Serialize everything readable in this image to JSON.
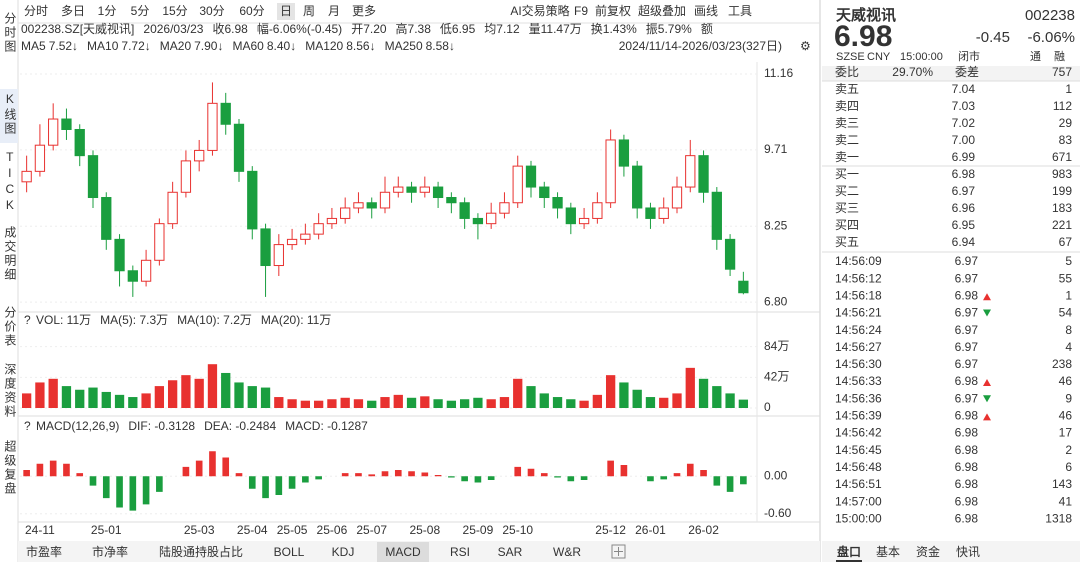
{
  "sidebar": {
    "tabs": [
      "分时图",
      "K线图",
      "TICK",
      "成交明细",
      "分价表",
      "深度资料",
      "超级复盘"
    ],
    "active": 1
  },
  "toolbar": {
    "periods": [
      "分时",
      "多日",
      "1分",
      "5分",
      "15分",
      "30分",
      "60分",
      "日",
      "周",
      "月",
      "更多"
    ],
    "active": 7,
    "tools": [
      "AI交易策略",
      "F9",
      "前复权",
      "超级叠加",
      "画线",
      "工具"
    ]
  },
  "info": [
    {
      "text": "002238.SZ[天威视讯]",
      "color": "#333333"
    },
    {
      "text": "2026/03/23",
      "color": "#333333"
    },
    {
      "text": "收6.98",
      "color": "#1a9e3f"
    },
    {
      "text": "幅-6.06%(-0.45)",
      "color": "#1a9e3f"
    },
    {
      "text": "开7.20",
      "color": "#333333"
    },
    {
      "text": "高7.38",
      "color": "#333333"
    },
    {
      "text": "低6.95",
      "color": "#333333"
    },
    {
      "text": "均7.12",
      "color": "#333333"
    },
    {
      "text": "量11.47万",
      "color": "#333333"
    },
    {
      "text": "换1.43%",
      "color": "#333333"
    },
    {
      "text": "振5.79%",
      "color": "#333333"
    },
    {
      "text": "额",
      "color": "#333333"
    }
  ],
  "ma_legend": [
    {
      "name": "MA5",
      "value": "7.52↓",
      "color": "#e8312f"
    },
    {
      "name": "MA10",
      "value": "7.72↓",
      "color": "#3a6fd8"
    },
    {
      "name": "MA20",
      "value": "7.90↓",
      "color": "#1c3f9e"
    },
    {
      "name": "MA60",
      "value": "8.40↓",
      "color": "#1aa6b7"
    },
    {
      "name": "MA120",
      "value": "8.56↓",
      "color": "#2e9e3a"
    },
    {
      "name": "MA250",
      "value": "8.58↓",
      "color": "#c0359e"
    }
  ],
  "range": "2024/11/14-2026/03/23(327日)",
  "vol_legend": [
    {
      "text": "VOL: 11万",
      "color": "#333333"
    },
    {
      "text": "MA(5): 7.3万",
      "color": "#333333"
    },
    {
      "text": "MA(10): 7.2万",
      "color": "#e8312f"
    },
    {
      "text": "MA(20): 11万",
      "color": "#3a6fd8"
    }
  ],
  "macd_legend": [
    {
      "text": "MACD(12,26,9)",
      "color": "#333333"
    },
    {
      "text": "DIF: -0.3128",
      "color": "#333333"
    },
    {
      "text": "DEA: -0.2484",
      "color": "#e8312f"
    },
    {
      "text": "MACD: -0.1287",
      "color": "#1a9e3f"
    }
  ],
  "chart_data": [
    {
      "type": "candlestick",
      "up_color": "#e8312f",
      "down_color": "#1a9e3f",
      "grid": true,
      "x": [
        null,
        "24-11",
        null,
        null,
        null,
        null,
        "25-01",
        null,
        null,
        null,
        null,
        null,
        null,
        "25-03",
        null,
        null,
        null,
        "25-04",
        null,
        null,
        "25-05",
        null,
        null,
        "25-06",
        null,
        null,
        "25-07",
        null,
        null,
        null,
        "25-08",
        null,
        null,
        null,
        "25-09",
        null,
        null,
        "25-10",
        null,
        null,
        null,
        null,
        null,
        null,
        "25-12",
        null,
        null,
        "26-01",
        null,
        null,
        null,
        "26-02",
        null,
        null,
        null
      ],
      "open": [
        9.1,
        9.3,
        9.8,
        10.3,
        10.1,
        9.6,
        8.8,
        8.0,
        7.4,
        7.2,
        7.6,
        8.3,
        8.9,
        9.5,
        9.7,
        10.6,
        10.2,
        9.3,
        8.2,
        7.5,
        7.9,
        8.0,
        8.1,
        8.3,
        8.4,
        8.6,
        8.7,
        8.6,
        8.9,
        9.0,
        8.9,
        9.0,
        8.8,
        8.7,
        8.4,
        8.3,
        8.5,
        8.7,
        9.4,
        9.0,
        8.8,
        8.6,
        8.3,
        8.4,
        8.7,
        9.9,
        9.4,
        8.6,
        8.4,
        8.6,
        9.0,
        9.6,
        8.9,
        8.0,
        7.2
      ],
      "high": [
        9.6,
        10.2,
        10.6,
        10.5,
        10.2,
        9.7,
        8.9,
        8.1,
        7.5,
        7.8,
        8.4,
        9.1,
        9.7,
        9.9,
        11.0,
        10.8,
        10.3,
        9.4,
        8.3,
        8.1,
        8.2,
        8.3,
        8.5,
        8.6,
        8.8,
        8.9,
        8.8,
        9.2,
        9.2,
        9.1,
        9.2,
        9.1,
        8.9,
        8.8,
        8.5,
        8.7,
        8.9,
        9.6,
        9.5,
        9.1,
        8.9,
        8.7,
        8.6,
        8.9,
        10.1,
        10.0,
        9.5,
        8.7,
        8.8,
        9.2,
        9.9,
        9.7,
        9.0,
        8.1,
        7.38
      ],
      "low": [
        8.9,
        9.2,
        9.7,
        9.9,
        9.4,
        8.6,
        7.8,
        7.1,
        6.9,
        7.1,
        7.5,
        8.2,
        8.8,
        9.3,
        9.6,
        10.0,
        9.1,
        8.0,
        6.9,
        7.3,
        7.8,
        7.9,
        8.0,
        8.2,
        8.3,
        8.5,
        8.4,
        8.5,
        8.8,
        8.7,
        8.8,
        8.6,
        8.5,
        8.2,
        8.0,
        8.2,
        8.4,
        8.6,
        8.8,
        8.6,
        8.4,
        8.1,
        8.2,
        8.3,
        8.6,
        9.2,
        8.4,
        8.2,
        8.3,
        8.5,
        8.9,
        8.7,
        7.8,
        7.3,
        6.95
      ],
      "close": [
        9.3,
        9.8,
        10.3,
        10.1,
        9.6,
        8.8,
        8.0,
        7.4,
        7.2,
        7.6,
        8.3,
        8.9,
        9.5,
        9.7,
        10.6,
        10.2,
        9.3,
        8.2,
        7.5,
        7.9,
        8.0,
        8.1,
        8.3,
        8.4,
        8.6,
        8.7,
        8.6,
        8.9,
        9.0,
        8.9,
        9.0,
        8.8,
        8.7,
        8.4,
        8.3,
        8.5,
        8.7,
        9.4,
        9.0,
        8.8,
        8.6,
        8.3,
        8.4,
        8.7,
        9.9,
        9.4,
        8.6,
        8.4,
        8.6,
        9.0,
        9.6,
        8.9,
        8.0,
        7.43,
        6.98
      ],
      "ylim": [
        6.65,
        11.39
      ],
      "yticks": [
        11.16,
        9.71,
        8.25,
        {
          "value": 6.8,
          "label": "6.80"
        }
      ]
    },
    {
      "type": "bar",
      "values": [
        20,
        35,
        40,
        30,
        25,
        28,
        22,
        18,
        15,
        20,
        30,
        38,
        45,
        40,
        60,
        48,
        35,
        30,
        28,
        15,
        12,
        10,
        10,
        12,
        14,
        12,
        10,
        15,
        18,
        14,
        16,
        12,
        10,
        12,
        14,
        12,
        15,
        40,
        30,
        20,
        15,
        12,
        10,
        18,
        45,
        35,
        25,
        15,
        14,
        20,
        55,
        40,
        30,
        20,
        11.47
      ],
      "ylim": [
        0,
        100
      ],
      "yticks": [
        {
          "value": 84,
          "label": "84万"
        },
        {
          "value": 42,
          "label": "42万"
        },
        0
      ]
    },
    {
      "type": "histogram",
      "up_color": "#e8312f",
      "down_color": "#1a9e3f",
      "values": [
        0.1,
        0.2,
        0.25,
        0.2,
        0.05,
        -0.15,
        -0.35,
        -0.5,
        -0.55,
        -0.45,
        -0.25,
        0,
        0.15,
        0.25,
        0.4,
        0.3,
        0.05,
        -0.2,
        -0.35,
        -0.3,
        -0.2,
        -0.1,
        -0.05,
        0,
        0.05,
        0.05,
        0.03,
        0.08,
        0.1,
        0.08,
        0.06,
        0.02,
        -0.02,
        -0.08,
        -0.1,
        -0.06,
        0,
        0.15,
        0.12,
        0.05,
        -0.02,
        -0.08,
        -0.06,
        0,
        0.25,
        0.18,
        0,
        -0.08,
        -0.05,
        0.05,
        0.2,
        0.1,
        -0.15,
        -0.25,
        -0.1287
      ],
      "ylim": [
        -0.7,
        0.58
      ],
      "yticks": [
        {
          "value": 0,
          "label": "0.00"
        },
        {
          "value": -0.6,
          "label": "-0.60"
        }
      ]
    }
  ],
  "bottom_tabs": {
    "items": [
      "市盈率",
      "市净率",
      "陆股通持股占比",
      "BOLL",
      "KDJ",
      "MACD",
      "RSI",
      "SAR",
      "W&R"
    ],
    "active": 5
  },
  "quote": {
    "name": "天威视讯",
    "code": "002238",
    "price": "6.98",
    "change": "-0.45",
    "change_pct": "-6.06%",
    "meta": [
      "SZSE",
      "CNY",
      "15:00:00",
      "闭市",
      "通",
      "融"
    ],
    "ratio_label": "委比",
    "ratio": "29.70%",
    "diff_label": "委差",
    "diff": "757",
    "asks": [
      [
        "卖五",
        "7.04",
        "1"
      ],
      [
        "卖四",
        "7.03",
        "112"
      ],
      [
        "卖三",
        "7.02",
        "29"
      ],
      [
        "卖二",
        "7.00",
        "83"
      ],
      [
        "卖一",
        "6.99",
        "671"
      ]
    ],
    "bids": [
      [
        "买一",
        "6.98",
        "983"
      ],
      [
        "买二",
        "6.97",
        "199"
      ],
      [
        "买三",
        "6.96",
        "183"
      ],
      [
        "买四",
        "6.95",
        "221"
      ],
      [
        "买五",
        "6.94",
        "67"
      ]
    ],
    "ticks": [
      {
        "time": "14:56:09",
        "price": "6.97",
        "vol": "5",
        "dir": "none",
        "side": "sell"
      },
      {
        "time": "14:56:12",
        "price": "6.97",
        "vol": "55",
        "dir": "none",
        "side": "sell"
      },
      {
        "time": "14:56:18",
        "price": "6.98",
        "vol": "1",
        "dir": "up",
        "side": "buy"
      },
      {
        "time": "14:56:21",
        "price": "6.97",
        "vol": "54",
        "dir": "down",
        "side": "sell"
      },
      {
        "time": "14:56:24",
        "price": "6.97",
        "vol": "8",
        "dir": "none",
        "side": "buy"
      },
      {
        "time": "14:56:27",
        "price": "6.97",
        "vol": "4",
        "dir": "none",
        "side": "buy"
      },
      {
        "time": "14:56:30",
        "price": "6.97",
        "vol": "238",
        "dir": "none",
        "side": "buy"
      },
      {
        "time": "14:56:33",
        "price": "6.98",
        "vol": "46",
        "dir": "up",
        "side": "buy"
      },
      {
        "time": "14:56:36",
        "price": "6.97",
        "vol": "9",
        "dir": "down",
        "side": "sell"
      },
      {
        "time": "14:56:39",
        "price": "6.98",
        "vol": "46",
        "dir": "up",
        "side": "buy"
      },
      {
        "time": "14:56:42",
        "price": "6.98",
        "vol": "17",
        "dir": "none",
        "side": "buy"
      },
      {
        "time": "14:56:45",
        "price": "6.98",
        "vol": "2",
        "dir": "none",
        "side": "buy"
      },
      {
        "time": "14:56:48",
        "price": "6.98",
        "vol": "6",
        "dir": "none",
        "side": "buy"
      },
      {
        "time": "14:56:51",
        "price": "6.98",
        "vol": "143",
        "dir": "none",
        "side": "buy"
      },
      {
        "time": "14:57:00",
        "price": "6.98",
        "vol": "41",
        "dir": "none",
        "side": "buy"
      },
      {
        "time": "15:00:00",
        "price": "6.98",
        "vol": "1318",
        "dir": "none",
        "side": "buy"
      }
    ],
    "tabs": [
      "盘口",
      "基本",
      "资金",
      "快讯"
    ],
    "active_tab": 0
  }
}
